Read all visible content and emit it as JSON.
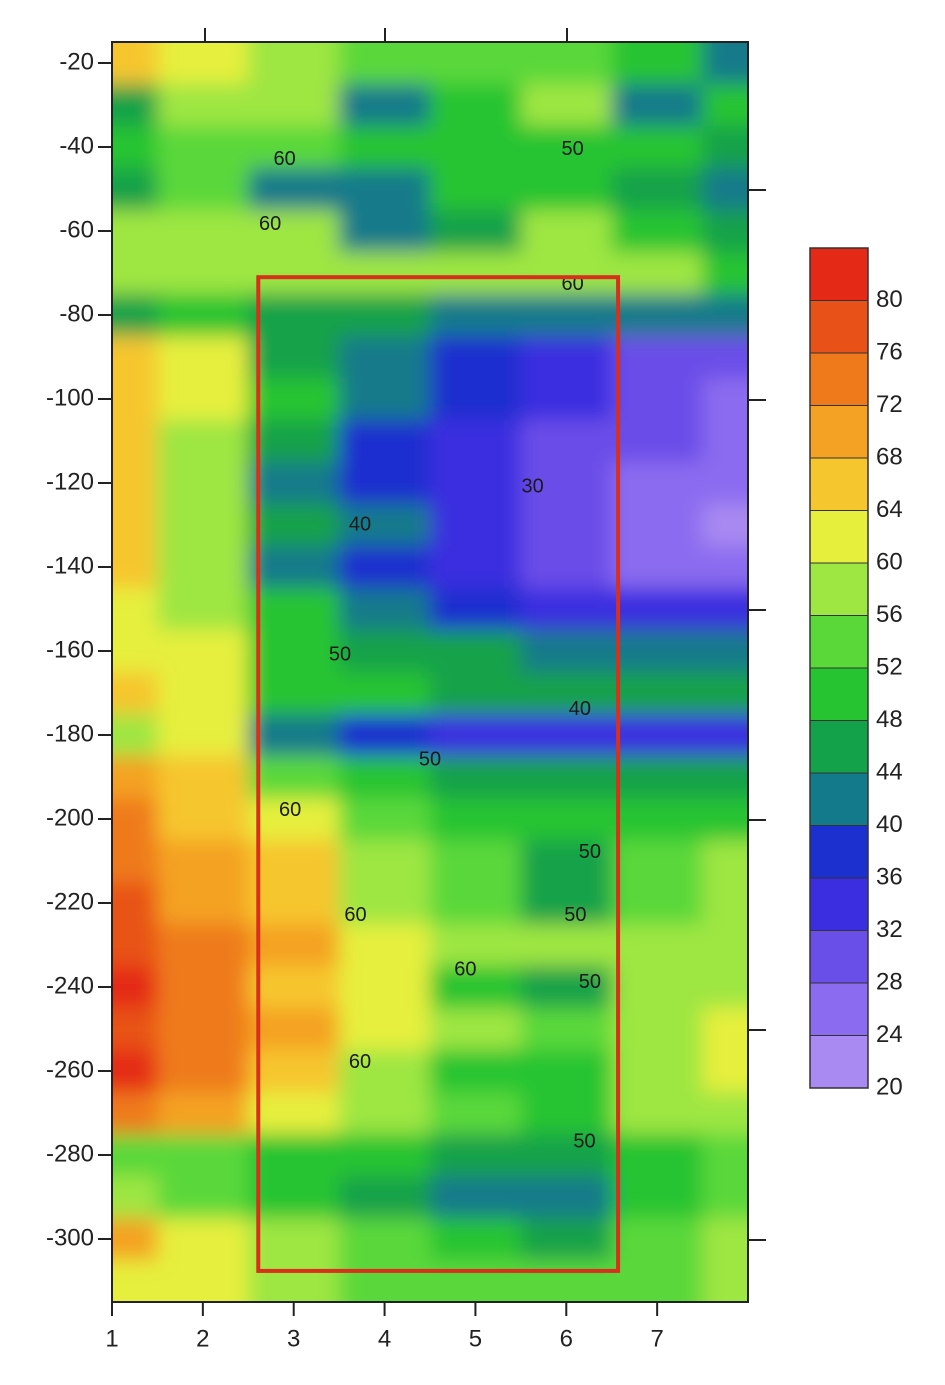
{
  "chart_data": {
    "type": "contour",
    "x": [
      1,
      2,
      3,
      4,
      5,
      6,
      7,
      8
    ],
    "y": [
      -20,
      -30,
      -40,
      -50,
      -60,
      -70,
      -80,
      -90,
      -100,
      -110,
      -120,
      -130,
      -140,
      -150,
      -160,
      -170,
      -180,
      -190,
      -200,
      -210,
      -220,
      -230,
      -240,
      -250,
      -260,
      -270,
      -280,
      -290,
      -300,
      -310
    ],
    "z": [
      [
        66,
        60,
        56,
        55,
        54,
        52,
        50,
        40
      ],
      [
        44,
        56,
        56,
        40,
        48,
        56,
        42,
        50
      ],
      [
        50,
        52,
        52,
        50,
        50,
        50,
        48,
        46
      ],
      [
        46,
        52,
        40,
        40,
        50,
        48,
        44,
        40
      ],
      [
        56,
        58,
        56,
        40,
        44,
        58,
        50,
        44
      ],
      [
        56,
        56,
        58,
        58,
        58,
        58,
        56,
        50
      ],
      [
        44,
        50,
        46,
        44,
        42,
        42,
        42,
        40
      ],
      [
        64,
        60,
        46,
        40,
        36,
        32,
        30,
        28
      ],
      [
        64,
        60,
        50,
        42,
        36,
        32,
        28,
        26
      ],
      [
        66,
        58,
        44,
        38,
        32,
        30,
        28,
        26
      ],
      [
        64,
        58,
        40,
        36,
        32,
        28,
        24,
        24
      ],
      [
        64,
        58,
        44,
        40,
        34,
        30,
        26,
        22
      ],
      [
        64,
        58,
        42,
        36,
        32,
        30,
        26,
        24
      ],
      [
        60,
        58,
        48,
        42,
        38,
        34,
        32,
        32
      ],
      [
        62,
        60,
        50,
        46,
        44,
        42,
        40,
        40
      ],
      [
        64,
        60,
        50,
        48,
        46,
        44,
        44,
        44
      ],
      [
        56,
        62,
        40,
        36,
        34,
        32,
        32,
        32
      ],
      [
        68,
        64,
        54,
        50,
        46,
        44,
        44,
        44
      ],
      [
        72,
        66,
        60,
        54,
        50,
        48,
        48,
        48
      ],
      [
        74,
        70,
        64,
        58,
        52,
        46,
        54,
        56
      ],
      [
        76,
        70,
        66,
        58,
        52,
        46,
        54,
        56
      ],
      [
        78,
        72,
        68,
        62,
        58,
        56,
        58,
        58
      ],
      [
        80,
        74,
        66,
        60,
        50,
        46,
        56,
        58
      ],
      [
        78,
        72,
        68,
        62,
        58,
        54,
        58,
        60
      ],
      [
        80,
        72,
        64,
        58,
        48,
        48,
        58,
        60
      ],
      [
        74,
        70,
        62,
        56,
        52,
        48,
        56,
        58
      ],
      [
        52,
        54,
        50,
        48,
        46,
        46,
        50,
        54
      ],
      [
        56,
        54,
        50,
        44,
        42,
        42,
        48,
        54
      ],
      [
        68,
        62,
        58,
        54,
        50,
        44,
        52,
        56
      ],
      [
        62,
        60,
        56,
        54,
        52,
        52,
        54,
        56
      ]
    ],
    "xlim": [
      1,
      8
    ],
    "xticks": [
      1,
      2,
      3,
      4,
      5,
      6,
      7
    ],
    "ylim": [
      -315,
      -15
    ],
    "yticks": [
      -20,
      -40,
      -60,
      -80,
      -100,
      -120,
      -140,
      -160,
      -180,
      -200,
      -220,
      -240,
      -260,
      -280,
      -300
    ],
    "colorbar": {
      "levels": [
        20,
        24,
        28,
        32,
        36,
        40,
        44,
        48,
        52,
        56,
        60,
        64,
        68,
        72,
        76,
        80,
        84
      ],
      "colors": [
        "#a98af2",
        "#8b6cf0",
        "#6a4ee8",
        "#3b2de0",
        "#1c2fcf",
        "#127a8a",
        "#13a24a",
        "#26c430",
        "#5ad83a",
        "#9ee642",
        "#e6ef3c",
        "#f6c62e",
        "#f4a224",
        "#ef7a1c",
        "#e85218",
        "#e42a16"
      ],
      "ticks": [
        20,
        24,
        28,
        32,
        36,
        40,
        44,
        48,
        52,
        56,
        60,
        64,
        68,
        72,
        76,
        80
      ]
    },
    "region": {
      "x": [
        2.61,
        6.57
      ],
      "y": [
        -71,
        -307.6
      ],
      "color": "#d8301c"
    },
    "annotations": [
      {
        "text": "50",
        "x": 6.07,
        "y": -40.7
      },
      {
        "text": "60",
        "x": 2.9,
        "y": -43
      },
      {
        "text": "60",
        "x": 2.74,
        "y": -58.5
      },
      {
        "text": "60",
        "x": 6.07,
        "y": -72.8
      },
      {
        "text": "30",
        "x": 5.63,
        "y": -121
      },
      {
        "text": "40",
        "x": 3.73,
        "y": -130
      },
      {
        "text": "50",
        "x": 3.51,
        "y": -161
      },
      {
        "text": "40",
        "x": 6.15,
        "y": -174
      },
      {
        "text": "50",
        "x": 4.5,
        "y": -186
      },
      {
        "text": "60",
        "x": 2.96,
        "y": -198
      },
      {
        "text": "50",
        "x": 6.26,
        "y": -208
      },
      {
        "text": "60",
        "x": 3.68,
        "y": -223
      },
      {
        "text": "50",
        "x": 6.1,
        "y": -223
      },
      {
        "text": "60",
        "x": 4.89,
        "y": -236
      },
      {
        "text": "50",
        "x": 6.26,
        "y": -239
      },
      {
        "text": "60",
        "x": 3.73,
        "y": -258
      },
      {
        "text": "50",
        "x": 6.2,
        "y": -277
      }
    ]
  }
}
